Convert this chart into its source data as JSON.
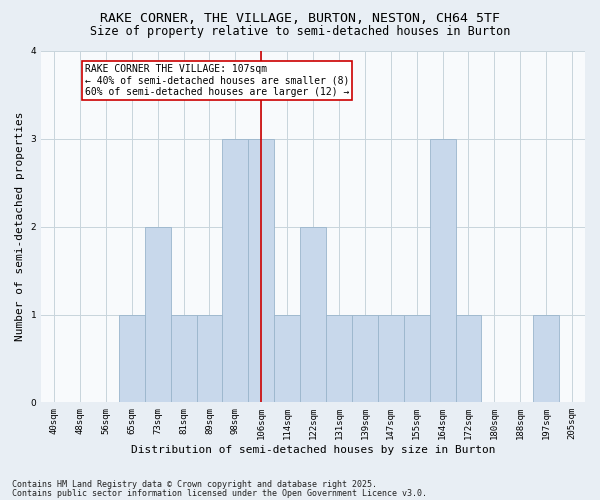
{
  "title1": "RAKE CORNER, THE VILLAGE, BURTON, NESTON, CH64 5TF",
  "title2": "Size of property relative to semi-detached houses in Burton",
  "xlabel": "Distribution of semi-detached houses by size in Burton",
  "ylabel": "Number of semi-detached properties",
  "categories": [
    "40sqm",
    "48sqm",
    "56sqm",
    "65sqm",
    "73sqm",
    "81sqm",
    "89sqm",
    "98sqm",
    "106sqm",
    "114sqm",
    "122sqm",
    "131sqm",
    "139sqm",
    "147sqm",
    "155sqm",
    "164sqm",
    "172sqm",
    "180sqm",
    "188sqm",
    "197sqm",
    "205sqm"
  ],
  "values": [
    0,
    0,
    0,
    1,
    2,
    1,
    1,
    3,
    3,
    1,
    2,
    1,
    1,
    1,
    1,
    3,
    1,
    0,
    0,
    1,
    0
  ],
  "bar_color": "#c8d8eb",
  "bar_edge_color": "#9ab5cc",
  "property_line_index": 8,
  "annotation_text": "RAKE CORNER THE VILLAGE: 107sqm\n← 40% of semi-detached houses are smaller (8)\n60% of semi-detached houses are larger (12) →",
  "annotation_box_color": "#ffffff",
  "annotation_box_edge_color": "#cc0000",
  "vline_color": "#cc0000",
  "ylim": [
    0,
    4
  ],
  "yticks": [
    0,
    1,
    2,
    3,
    4
  ],
  "footnote1": "Contains HM Land Registry data © Crown copyright and database right 2025.",
  "footnote2": "Contains public sector information licensed under the Open Government Licence v3.0.",
  "background_color": "#e8eef4",
  "plot_background_color": "#f8fafc",
  "grid_color": "#c8d4dc",
  "title1_fontsize": 9.5,
  "title2_fontsize": 8.5,
  "xlabel_fontsize": 8,
  "ylabel_fontsize": 8,
  "tick_fontsize": 6.5,
  "annotation_fontsize": 7,
  "footnote_fontsize": 6
}
